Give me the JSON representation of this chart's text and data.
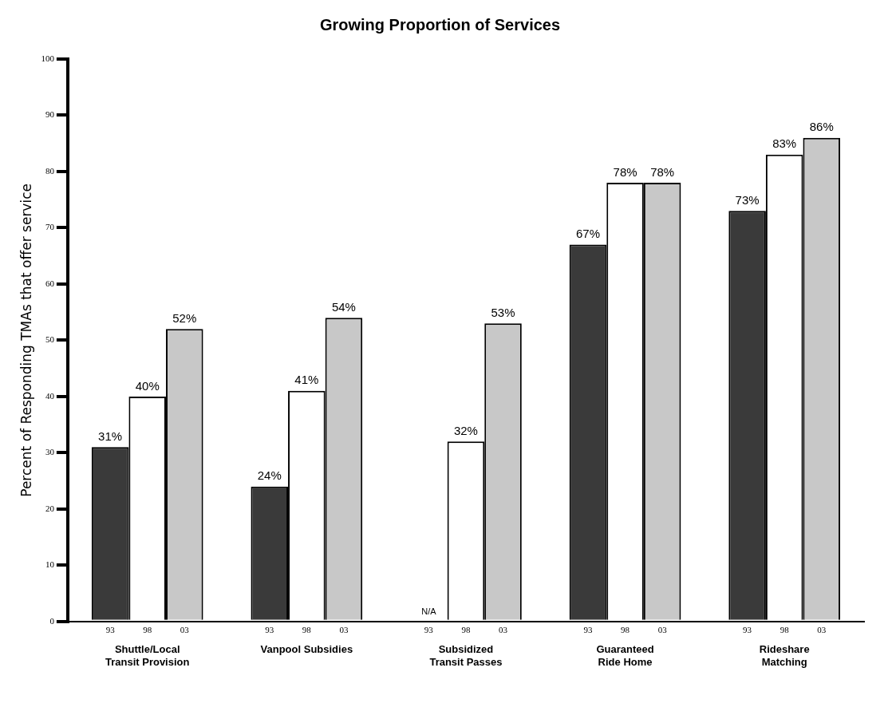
{
  "chart_data": {
    "type": "bar",
    "title": "Growing Proportion of Services",
    "ylabel": "Percent of Responding TMAs that offer service",
    "categories": [
      "Shuttle/Local\nTransit Provision",
      "Vanpool Subsidies",
      "Subsidized\nTransit Passes",
      "Guaranteed\nRide Home",
      "Rideshare\nMatching"
    ],
    "series": [
      {
        "name": "93",
        "color": "#3a3a3a",
        "values": [
          31,
          24,
          null,
          67,
          73
        ],
        "value_labels": [
          "31%",
          "24%",
          "N/A",
          "67%",
          "73%"
        ]
      },
      {
        "name": "98",
        "color": "#ffffff",
        "values": [
          40,
          41,
          32,
          78,
          83
        ],
        "value_labels": [
          "40%",
          "41%",
          "32%",
          "78%",
          "83%"
        ]
      },
      {
        "name": "03",
        "color": "#c8c8c8",
        "values": [
          52,
          54,
          53,
          78,
          86
        ],
        "value_labels": [
          "52%",
          "54%",
          "53%",
          "78%",
          "86%"
        ]
      }
    ],
    "ylim": [
      0,
      100
    ],
    "yticks": [
      0,
      10,
      20,
      30,
      40,
      50,
      60,
      70,
      80,
      90,
      100
    ],
    "grid": false,
    "legend": false
  }
}
